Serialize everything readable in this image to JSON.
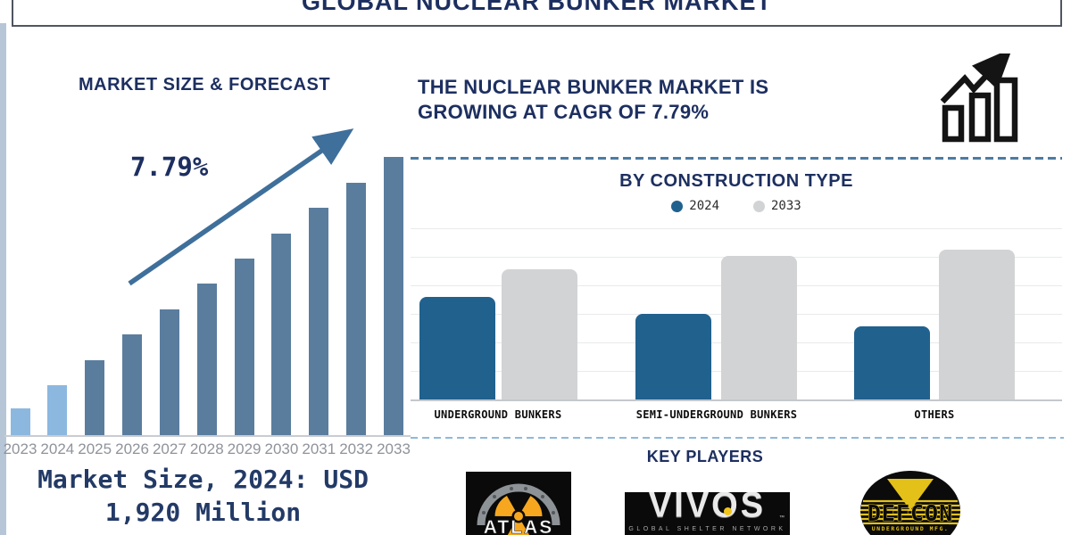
{
  "page": {
    "title": "GLOBAL NUCLEAR BUNKER MARKET"
  },
  "left_panel": {
    "section_title": "MARKET SIZE & FORECAST",
    "cagr_label": "7.79%",
    "market_size_line1": "Market Size, 2024: USD",
    "market_size_line2": "1,920 Million"
  },
  "right_panel": {
    "heading_line1": "THE NUCLEAR BUNKER MARKET IS",
    "heading_line2": "GROWING AT CAGR OF 7.79%",
    "construction_title": "BY CONSTRUCTION TYPE",
    "legend": [
      {
        "label": "2024",
        "color": "#21618e"
      },
      {
        "label": "2033",
        "color": "#d2d3d4"
      }
    ],
    "key_players_title": "KEY PLAYERS",
    "logos": {
      "atlas": {
        "caption": "ATLAS"
      },
      "vivos": {
        "caption": "VIVOS",
        "tm": "™",
        "subcaption": "GLOBAL SHELTER NETWORK"
      },
      "defcon": {
        "caption": "DEFCON",
        "subcaption": "UNDERGROUND MFG."
      }
    }
  },
  "colors": {
    "navy_text": "#1d2f60",
    "forecast_bar": "#5a7d9e",
    "forecast_bar_highlight": "#8cb8e0",
    "trend_arrow": "#3f6f9b",
    "construction_2024": "#21618e",
    "construction_2033": "#d2d3d4",
    "axis_line": "#c9ccd1",
    "year_label": "#8f939a",
    "dashed_separator": "#4d7ba3"
  },
  "chart_data": [
    {
      "type": "bar",
      "title": "MARKET SIZE & FORECAST",
      "categories": [
        "2023",
        "2024",
        "2025",
        "2026",
        "2027",
        "2028",
        "2029",
        "2030",
        "2031",
        "2032",
        "2033"
      ],
      "values_relative": [
        30,
        56,
        84,
        113,
        141,
        170,
        198,
        226,
        255,
        283,
        312
      ],
      "highlight_years": [
        "2023",
        "2024"
      ],
      "bar_color": "#5a7d9e",
      "highlight_color": "#8cb8e0",
      "annotation": "7.79%",
      "known_point": "2024 = USD 1,920 Million",
      "yaxis": "none (illustrative heights)",
      "grid": false
    },
    {
      "type": "bar",
      "title": "BY CONSTRUCTION TYPE",
      "categories": [
        "UNDERGROUND BUNKERS",
        "SEMI-UNDERGROUND BUNKERS",
        "OTHERS"
      ],
      "series": [
        {
          "name": "2024",
          "color": "#21618e",
          "values_relative": [
            115,
            96,
            82
          ]
        },
        {
          "name": "2033",
          "color": "#d2d3d4",
          "values_relative": [
            146,
            161,
            168
          ]
        }
      ],
      "legend_position": "top",
      "yaxis": "none (illustrative heights)",
      "grid": "horizontal"
    }
  ]
}
